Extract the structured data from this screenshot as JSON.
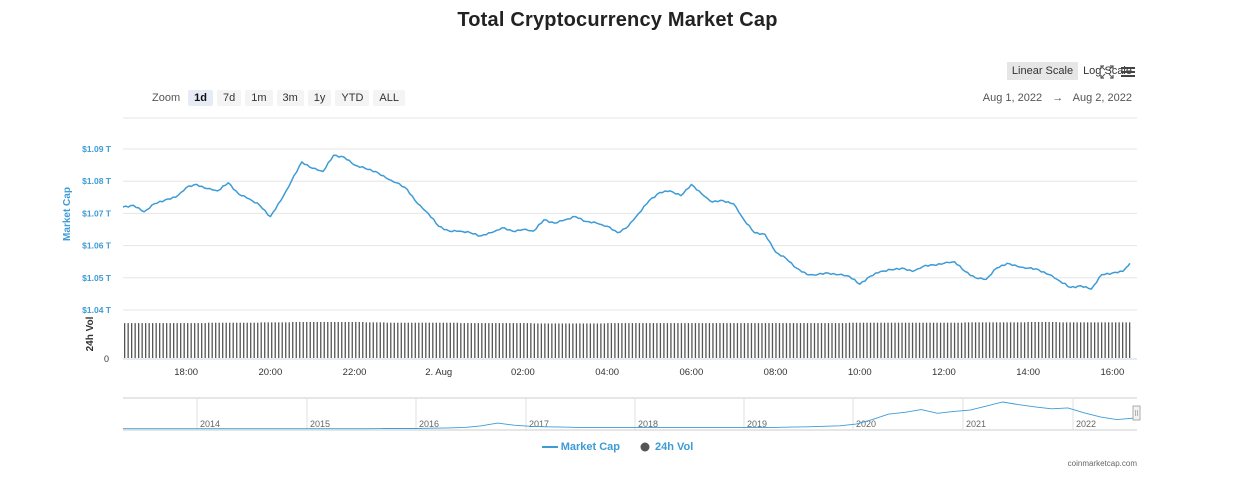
{
  "title": "Total Cryptocurrency Market Cap",
  "zoom": {
    "label": "Zoom",
    "buttons": [
      "1d",
      "7d",
      "1m",
      "3m",
      "1y",
      "YTD",
      "ALL"
    ],
    "active": "1d"
  },
  "scale": {
    "linear": "Linear Scale",
    "log": "Log Scale",
    "active": "linear"
  },
  "icons": {
    "fullscreen": "fullscreen-icon",
    "menu": "hamburger-menu-icon"
  },
  "range": {
    "start": "Aug 1, 2022",
    "arrow": "→",
    "end": "Aug 2, 2022"
  },
  "colors": {
    "line": "#3d9bd6",
    "volume": "#555555",
    "grid": "#e6e6e6",
    "axis_blue": "#3d9bd6"
  },
  "chart_data": {
    "type": "line",
    "title": "Total Cryptocurrency Market Cap",
    "ylabel": "Market Cap",
    "y2label": "24h Vol",
    "y_ticks": [
      "$1.04 T",
      "$1.05 T",
      "$1.06 T",
      "$1.07 T",
      "$1.08 T",
      "$1.09 T"
    ],
    "ylim": [
      1.04,
      1.09
    ],
    "vol_tick": "0",
    "x_ticks": [
      "18:00",
      "20:00",
      "22:00",
      "2. Aug",
      "02:00",
      "04:00",
      "06:00",
      "08:00",
      "10:00",
      "12:00",
      "14:00",
      "16:00"
    ],
    "grid": true,
    "legend_position": "bottom-center",
    "series": [
      {
        "name": "Market Cap",
        "unit": "T USD",
        "points": [
          [
            "16:30",
            1.072
          ],
          [
            "16:45",
            1.0725
          ],
          [
            "17:00",
            1.0705
          ],
          [
            "17:15",
            1.073
          ],
          [
            "17:30",
            1.0742
          ],
          [
            "17:45",
            1.075
          ],
          [
            "18:00",
            1.078
          ],
          [
            "18:15",
            1.079
          ],
          [
            "18:30",
            1.0777
          ],
          [
            "18:45",
            1.077
          ],
          [
            "19:00",
            1.0795
          ],
          [
            "19:15",
            1.076
          ],
          [
            "19:30",
            1.0745
          ],
          [
            "19:45",
            1.0725
          ],
          [
            "20:00",
            1.069
          ],
          [
            "20:15",
            1.074
          ],
          [
            "20:30",
            1.08
          ],
          [
            "20:45",
            1.086
          ],
          [
            "21:00",
            1.084
          ],
          [
            "21:15",
            1.083
          ],
          [
            "21:30",
            1.088
          ],
          [
            "21:45",
            1.0875
          ],
          [
            "22:00",
            1.085
          ],
          [
            "22:15",
            1.084
          ],
          [
            "22:30",
            1.083
          ],
          [
            "22:45",
            1.081
          ],
          [
            "23:00",
            1.0795
          ],
          [
            "23:15",
            1.0775
          ],
          [
            "23:30",
            1.073
          ],
          [
            "23:45",
            1.07
          ],
          [
            "00:00",
            1.066
          ],
          [
            "00:15",
            1.0645
          ],
          [
            "00:30",
            1.0645
          ],
          [
            "00:45",
            1.064
          ],
          [
            "01:00",
            1.063
          ],
          [
            "01:15",
            1.064
          ],
          [
            "01:30",
            1.0655
          ],
          [
            "01:45",
            1.0645
          ],
          [
            "02:00",
            1.065
          ],
          [
            "02:15",
            1.0645
          ],
          [
            "02:30",
            1.068
          ],
          [
            "02:45",
            1.067
          ],
          [
            "03:00",
            1.068
          ],
          [
            "03:15",
            1.069
          ],
          [
            "03:30",
            1.0675
          ],
          [
            "03:45",
            1.067
          ],
          [
            "04:00",
            1.066
          ],
          [
            "04:15",
            1.064
          ],
          [
            "04:30",
            1.066
          ],
          [
            "04:45",
            1.07
          ],
          [
            "05:00",
            1.074
          ],
          [
            "05:15",
            1.0765
          ],
          [
            "05:30",
            1.077
          ],
          [
            "05:45",
            1.0755
          ],
          [
            "06:00",
            1.079
          ],
          [
            "06:15",
            1.076
          ],
          [
            "06:30",
            1.0735
          ],
          [
            "06:45",
            1.074
          ],
          [
            "07:00",
            1.073
          ],
          [
            "07:15",
            1.068
          ],
          [
            "07:30",
            1.064
          ],
          [
            "07:45",
            1.0635
          ],
          [
            "08:00",
            1.058
          ],
          [
            "08:15",
            1.056
          ],
          [
            "08:30",
            1.053
          ],
          [
            "08:45",
            1.051
          ],
          [
            "09:00",
            1.051
          ],
          [
            "09:15",
            1.0515
          ],
          [
            "09:30",
            1.051
          ],
          [
            "09:45",
            1.0505
          ],
          [
            "10:00",
            1.048
          ],
          [
            "10:15",
            1.0505
          ],
          [
            "10:30",
            1.052
          ],
          [
            "10:45",
            1.0525
          ],
          [
            "11:00",
            1.053
          ],
          [
            "11:15",
            1.052
          ],
          [
            "11:30",
            1.0535
          ],
          [
            "11:45",
            1.054
          ],
          [
            "12:00",
            1.0545
          ],
          [
            "12:15",
            1.055
          ],
          [
            "12:30",
            1.052
          ],
          [
            "12:45",
            1.05
          ],
          [
            "13:00",
            1.0495
          ],
          [
            "13:15",
            1.053
          ],
          [
            "13:30",
            1.0545
          ],
          [
            "13:45",
            1.0535
          ],
          [
            "14:00",
            1.053
          ],
          [
            "14:15",
            1.0525
          ],
          [
            "14:30",
            1.051
          ],
          [
            "14:45",
            1.049
          ],
          [
            "15:00",
            1.047
          ],
          [
            "15:15",
            1.0475
          ],
          [
            "15:30",
            1.0465
          ],
          [
            "15:45",
            1.051
          ],
          [
            "16:00",
            1.0515
          ],
          [
            "16:15",
            1.052
          ],
          [
            "16:25",
            1.0545
          ]
        ]
      },
      {
        "name": "24h Vol",
        "unit": "relative",
        "values": [
          0.97,
          0.97,
          0.97,
          0.97,
          0.97,
          0.97,
          0.97,
          0.97,
          0.98,
          0.98,
          0.98,
          0.98,
          0.98,
          0.99,
          0.99,
          0.99,
          1.0,
          1.0,
          1.0,
          1.0,
          1.0,
          1.0,
          1.0,
          0.99,
          0.99,
          0.98,
          0.98,
          0.98,
          0.98,
          0.98,
          0.98,
          0.98,
          0.97,
          0.97,
          0.97,
          0.97,
          0.97,
          0.97,
          0.97,
          0.96,
          0.96,
          0.96,
          0.96,
          0.96,
          0.96,
          0.96,
          0.97,
          0.97,
          0.97,
          0.97,
          0.97,
          0.97,
          0.97,
          0.97,
          0.97,
          0.97,
          0.97,
          0.97,
          0.97,
          0.97,
          0.97,
          0.97,
          0.97,
          0.97,
          0.97,
          0.97,
          0.97,
          0.97,
          0.97,
          0.98,
          0.98,
          0.98,
          0.98,
          0.98,
          0.98,
          0.98,
          0.98,
          0.98,
          0.98,
          0.98,
          0.99,
          0.99,
          0.99,
          0.99,
          0.99,
          0.99,
          1.0,
          1.0,
          1.0,
          0.99,
          0.99,
          0.99,
          0.99,
          0.99,
          0.99,
          0.99
        ]
      }
    ],
    "navigator": {
      "year_labels": [
        "2014",
        "2015",
        "2016",
        "2017",
        "2018",
        "2019",
        "2020",
        "2021",
        "2022"
      ],
      "values": [
        0.01,
        0.01,
        0.01,
        0.01,
        0.01,
        0.01,
        0.01,
        0.01,
        0.01,
        0.01,
        0.01,
        0.01,
        0.01,
        0.01,
        0.01,
        0.01,
        0.02,
        0.02,
        0.02,
        0.03,
        0.04,
        0.06,
        0.12,
        0.22,
        0.14,
        0.1,
        0.08,
        0.07,
        0.06,
        0.06,
        0.05,
        0.05,
        0.05,
        0.05,
        0.05,
        0.05,
        0.05,
        0.05,
        0.06,
        0.06,
        0.06,
        0.07,
        0.08,
        0.1,
        0.12,
        0.18,
        0.35,
        0.55,
        0.62,
        0.72,
        0.58,
        0.65,
        0.7,
        0.85,
        1.0,
        0.9,
        0.82,
        0.75,
        0.78,
        0.6,
        0.45,
        0.35,
        0.4
      ]
    }
  },
  "legend": [
    "Market Cap",
    "24h Vol"
  ],
  "credit": "coinmarketcap.com"
}
